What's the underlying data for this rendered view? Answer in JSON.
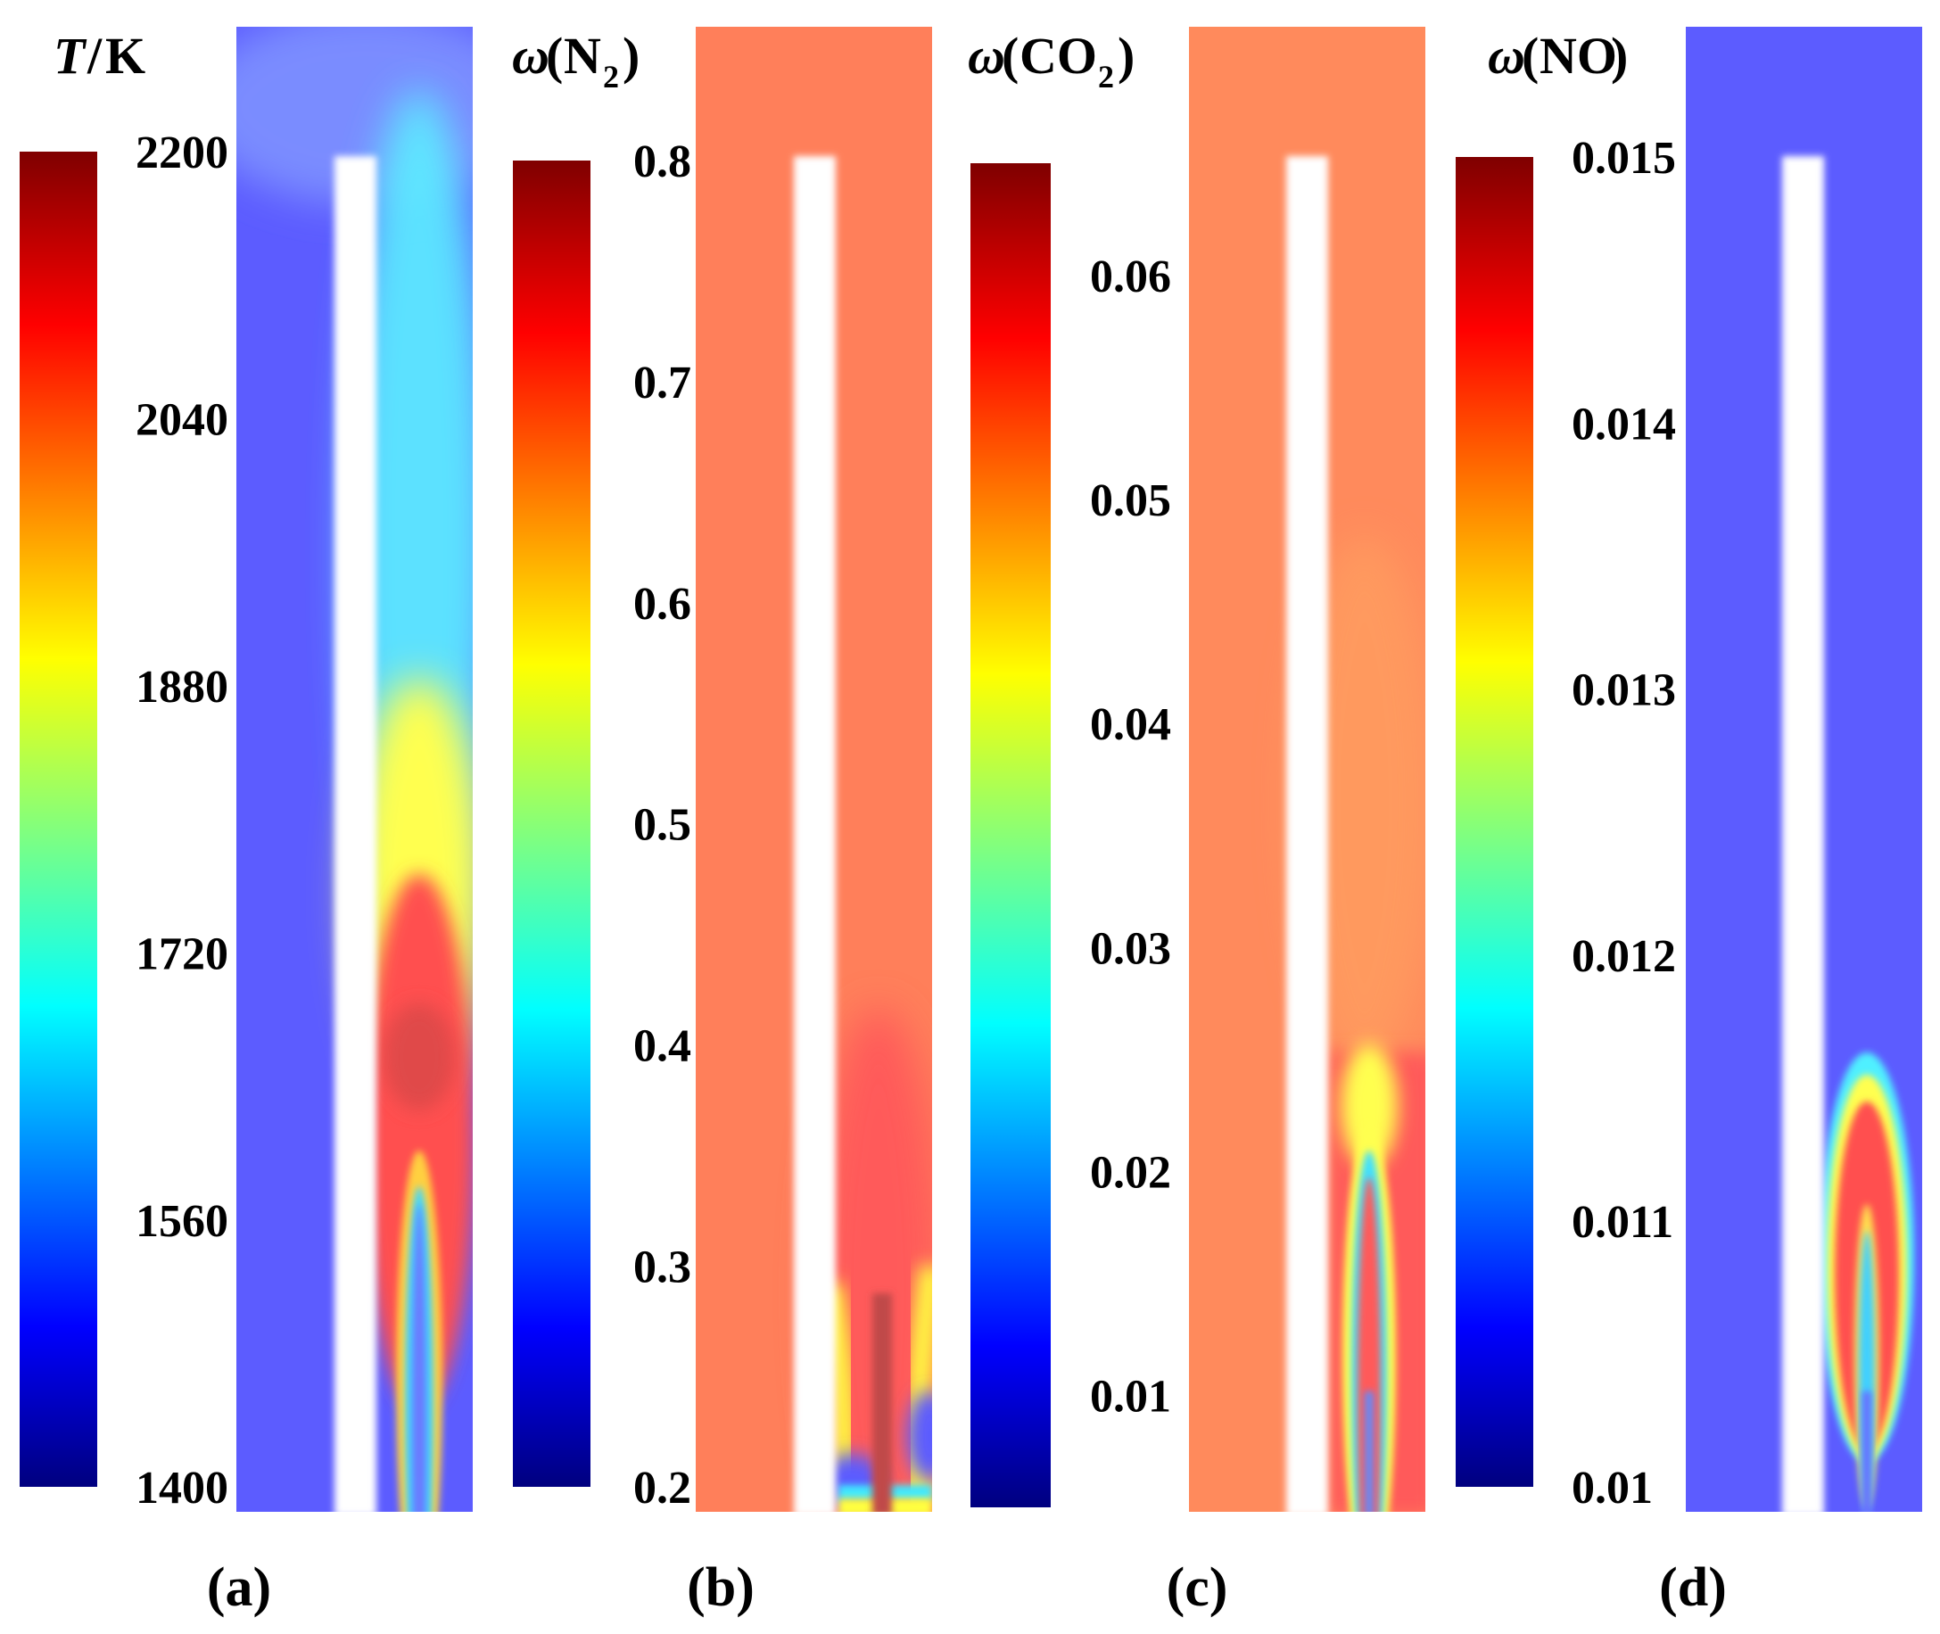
{
  "chart_data": [
    {
      "type": "heatmap",
      "panel": "(a)",
      "quantity": "T",
      "unit": "K",
      "ticks": [
        "2200",
        "2040",
        "1880",
        "1720",
        "1560",
        "1400"
      ],
      "range": [
        1400,
        2200
      ],
      "background": "#5c5cff",
      "regions": [
        {
          "name": "cyan-upper",
          "color": "#5cf0ff"
        },
        {
          "name": "yellow-band",
          "color": "#ffff50"
        },
        {
          "name": "red-core",
          "color": "#ff5050"
        }
      ]
    },
    {
      "type": "heatmap",
      "panel": "(b)",
      "quantity": "N",
      "subscript": "2",
      "ticks": [
        "0.8",
        "0.7",
        "0.6",
        "0.5",
        "0.4",
        "0.3",
        "0.2"
      ],
      "range": [
        0.2,
        0.8
      ],
      "background": "#ff7f5a",
      "regions": [
        {
          "name": "red-plume",
          "color": "#ff5a5a"
        },
        {
          "name": "yellow-edge",
          "color": "#ffff40"
        },
        {
          "name": "blue-pocket",
          "color": "#5c5cff"
        }
      ]
    },
    {
      "type": "heatmap",
      "panel": "(c)",
      "quantity": "CO",
      "subscript": "2",
      "ticks": [
        "0.06",
        "0.05",
        "0.04",
        "0.03",
        "0.02",
        "0.01"
      ],
      "range": [
        0.005,
        0.065
      ],
      "background": "#ff8a5c",
      "regions": [
        {
          "name": "red-zone",
          "color": "#ff5a5a"
        },
        {
          "name": "yellow-tip",
          "color": "#ffff50"
        },
        {
          "name": "blue-inner",
          "color": "#5c8cff"
        }
      ]
    },
    {
      "type": "heatmap",
      "panel": "(d)",
      "quantity": "NO",
      "ticks": [
        "0.015",
        "0.014",
        "0.013",
        "0.012",
        "0.011",
        "0.01"
      ],
      "range": [
        0.01,
        0.015
      ],
      "background": "#5c5cff",
      "regions": [
        {
          "name": "no-plume",
          "color": "#ff5050"
        },
        {
          "name": "yellow-ring",
          "color": "#ffff50"
        },
        {
          "name": "cyan-ring",
          "color": "#50f0ff"
        }
      ]
    }
  ],
  "colormap": [
    "#00007f",
    "#0000ff",
    "#00ffff",
    "#ffff00",
    "#ff0000",
    "#7f0000"
  ]
}
